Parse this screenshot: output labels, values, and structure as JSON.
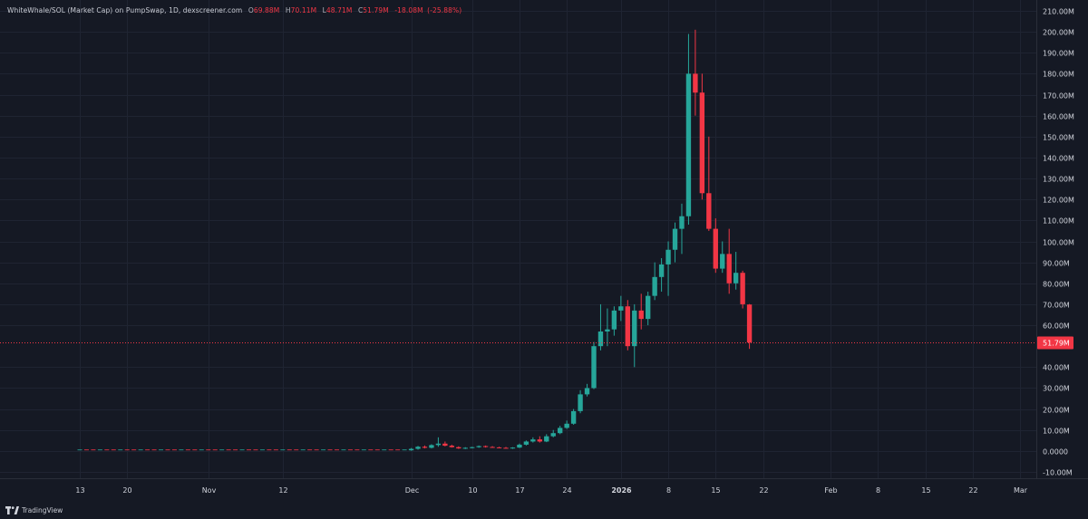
{
  "legend": {
    "title": "WhiteWhale/SOL (Market Cap) on PumpSwap, 1D, dexscreener.com",
    "open_label": "O",
    "open": "69.88M",
    "high_label": "H",
    "high": "70.11M",
    "low_label": "L",
    "low": "48.71M",
    "close_label": "C",
    "close": "51.79M",
    "change": "-18.08M",
    "change_pct": "(-25.88%)"
  },
  "branding": {
    "name": "TradingView"
  },
  "colors": {
    "background": "#151924",
    "up": "#26a69a",
    "down": "#f23645",
    "grid": "#1f2432",
    "axis_text": "#d1d4dc"
  },
  "chart_data": {
    "type": "candlestick",
    "interval": "1D",
    "y_unit": "M",
    "ylim": [
      -10,
      210
    ],
    "y_ticks": [
      {
        "value": 210,
        "label": "210.00M"
      },
      {
        "value": 200,
        "label": "200.00M"
      },
      {
        "value": 190,
        "label": "190.00M"
      },
      {
        "value": 180,
        "label": "180.00M"
      },
      {
        "value": 170,
        "label": "170.00M"
      },
      {
        "value": 160,
        "label": "160.00M"
      },
      {
        "value": 150,
        "label": "150.00M"
      },
      {
        "value": 140,
        "label": "140.00M"
      },
      {
        "value": 130,
        "label": "130.00M"
      },
      {
        "value": 120,
        "label": "120.00M"
      },
      {
        "value": 110,
        "label": "110.00M"
      },
      {
        "value": 100,
        "label": "100.00M"
      },
      {
        "value": 90,
        "label": "90.00M"
      },
      {
        "value": 80,
        "label": "80.00M"
      },
      {
        "value": 70,
        "label": "70.00M"
      },
      {
        "value": 60,
        "label": "60.00M"
      },
      {
        "value": 40,
        "label": "40.00M"
      },
      {
        "value": 30,
        "label": "30.00M"
      },
      {
        "value": 20,
        "label": "20.00M"
      },
      {
        "value": 10,
        "label": "10.00M"
      },
      {
        "value": 0,
        "label": "0.0000"
      },
      {
        "value": -10,
        "label": "-10.00M"
      }
    ],
    "x_ticks": [
      {
        "date": "2025-10-13",
        "label": "13",
        "bold": false
      },
      {
        "date": "2025-10-20",
        "label": "20",
        "bold": false
      },
      {
        "date": "2025-11-01",
        "label": "Nov",
        "bold": false
      },
      {
        "date": "2025-11-12",
        "label": "12",
        "bold": false
      },
      {
        "date": "2025-12-01",
        "label": "Dec",
        "bold": false
      },
      {
        "date": "2025-12-10",
        "label": "10",
        "bold": false
      },
      {
        "date": "2025-12-17",
        "label": "17",
        "bold": false
      },
      {
        "date": "2025-12-24",
        "label": "24",
        "bold": false
      },
      {
        "date": "2026-01-01",
        "label": "2026",
        "bold": true
      },
      {
        "date": "2026-01-08",
        "label": "8",
        "bold": false
      },
      {
        "date": "2026-01-15",
        "label": "15",
        "bold": false
      },
      {
        "date": "2026-01-22",
        "label": "22",
        "bold": false
      },
      {
        "date": "2026-02-01",
        "label": "Feb",
        "bold": false
      },
      {
        "date": "2026-02-08",
        "label": "8",
        "bold": false
      },
      {
        "date": "2026-02-15",
        "label": "15",
        "bold": false
      },
      {
        "date": "2026-02-22",
        "label": "22",
        "bold": false
      },
      {
        "date": "2026-03-01",
        "label": "Mar",
        "bold": false
      }
    ],
    "x_range": [
      "2025-10-13",
      "2026-03-01"
    ],
    "last_price": {
      "value": 51.79,
      "label": "51.79M"
    },
    "flat_period": {
      "from": "2025-10-13",
      "to": "2025-11-30",
      "value": 0.3
    },
    "candles": [
      {
        "date": "2025-12-01",
        "o": 0.3,
        "h": 1.4,
        "l": 0.1,
        "c": 1.0
      },
      {
        "date": "2025-12-02",
        "o": 1.0,
        "h": 2.4,
        "l": 0.6,
        "c": 2.0
      },
      {
        "date": "2025-12-03",
        "o": 2.0,
        "h": 2.6,
        "l": 1.2,
        "c": 1.5
      },
      {
        "date": "2025-12-04",
        "o": 1.5,
        "h": 3.2,
        "l": 1.2,
        "c": 2.8
      },
      {
        "date": "2025-12-05",
        "o": 2.8,
        "h": 6.5,
        "l": 2.0,
        "c": 3.5
      },
      {
        "date": "2025-12-06",
        "o": 3.5,
        "h": 4.5,
        "l": 2.2,
        "c": 2.5
      },
      {
        "date": "2025-12-07",
        "o": 2.5,
        "h": 3.0,
        "l": 1.6,
        "c": 1.8
      },
      {
        "date": "2025-12-08",
        "o": 1.8,
        "h": 2.2,
        "l": 1.0,
        "c": 1.2
      },
      {
        "date": "2025-12-09",
        "o": 1.2,
        "h": 1.8,
        "l": 0.9,
        "c": 1.5
      },
      {
        "date": "2025-12-10",
        "o": 1.5,
        "h": 2.0,
        "l": 1.2,
        "c": 1.8
      },
      {
        "date": "2025-12-11",
        "o": 1.8,
        "h": 2.6,
        "l": 1.5,
        "c": 2.3
      },
      {
        "date": "2025-12-12",
        "o": 2.3,
        "h": 2.6,
        "l": 1.6,
        "c": 1.9
      },
      {
        "date": "2025-12-13",
        "o": 1.9,
        "h": 2.3,
        "l": 1.6,
        "c": 1.7
      },
      {
        "date": "2025-12-14",
        "o": 1.7,
        "h": 2.0,
        "l": 1.4,
        "c": 1.5
      },
      {
        "date": "2025-12-15",
        "o": 1.5,
        "h": 1.9,
        "l": 1.2,
        "c": 1.4
      },
      {
        "date": "2025-12-16",
        "o": 1.4,
        "h": 1.8,
        "l": 1.0,
        "c": 1.6
      },
      {
        "date": "2025-12-17",
        "o": 1.6,
        "h": 3.5,
        "l": 1.4,
        "c": 3.0
      },
      {
        "date": "2025-12-18",
        "o": 3.0,
        "h": 5.0,
        "l": 2.6,
        "c": 4.5
      },
      {
        "date": "2025-12-19",
        "o": 4.5,
        "h": 6.5,
        "l": 4.0,
        "c": 5.5
      },
      {
        "date": "2025-12-20",
        "o": 5.5,
        "h": 7.0,
        "l": 4.0,
        "c": 4.5
      },
      {
        "date": "2025-12-21",
        "o": 4.5,
        "h": 8.0,
        "l": 4.2,
        "c": 7.0
      },
      {
        "date": "2025-12-22",
        "o": 7.0,
        "h": 10.0,
        "l": 6.5,
        "c": 8.5
      },
      {
        "date": "2025-12-23",
        "o": 8.5,
        "h": 12.0,
        "l": 8.0,
        "c": 11.0
      },
      {
        "date": "2025-12-24",
        "o": 11.0,
        "h": 14.5,
        "l": 10.5,
        "c": 13.0
      },
      {
        "date": "2025-12-25",
        "o": 13.0,
        "h": 20.0,
        "l": 12.5,
        "c": 19.0
      },
      {
        "date": "2025-12-26",
        "o": 19.0,
        "h": 29.0,
        "l": 18.0,
        "c": 27.0
      },
      {
        "date": "2025-12-27",
        "o": 27.0,
        "h": 32.0,
        "l": 26.0,
        "c": 30.0
      },
      {
        "date": "2025-12-28",
        "o": 30.0,
        "h": 52.0,
        "l": 29.5,
        "c": 50.0
      },
      {
        "date": "2025-12-29",
        "o": 50.0,
        "h": 70.0,
        "l": 48.0,
        "c": 57.0
      },
      {
        "date": "2025-12-30",
        "o": 57.0,
        "h": 68.0,
        "l": 50.0,
        "c": 58.0
      },
      {
        "date": "2025-12-31",
        "o": 58.0,
        "h": 69.0,
        "l": 55.0,
        "c": 67.0
      },
      {
        "date": "2026-01-01",
        "o": 67.0,
        "h": 74.0,
        "l": 62.0,
        "c": 69.0
      },
      {
        "date": "2026-01-02",
        "o": 69.0,
        "h": 72.0,
        "l": 48.0,
        "c": 50.0
      },
      {
        "date": "2026-01-03",
        "o": 50.0,
        "h": 70.0,
        "l": 40.0,
        "c": 67.0
      },
      {
        "date": "2026-01-04",
        "o": 67.0,
        "h": 75.0,
        "l": 58.0,
        "c": 63.0
      },
      {
        "date": "2026-01-05",
        "o": 63.0,
        "h": 76.0,
        "l": 60.0,
        "c": 74.0
      },
      {
        "date": "2026-01-06",
        "o": 74.0,
        "h": 90.0,
        "l": 72.0,
        "c": 83.0
      },
      {
        "date": "2026-01-07",
        "o": 83.0,
        "h": 92.0,
        "l": 76.0,
        "c": 89.0
      },
      {
        "date": "2026-01-08",
        "o": 89.0,
        "h": 100.0,
        "l": 74.0,
        "c": 96.0
      },
      {
        "date": "2026-01-09",
        "o": 96.0,
        "h": 109.0,
        "l": 90.0,
        "c": 106.0
      },
      {
        "date": "2026-01-10",
        "o": 106.0,
        "h": 118.0,
        "l": 94.0,
        "c": 112.0
      },
      {
        "date": "2026-01-11",
        "o": 112.0,
        "h": 199.0,
        "l": 108.0,
        "c": 180.0
      },
      {
        "date": "2026-01-12",
        "o": 180.0,
        "h": 201.0,
        "l": 160.0,
        "c": 171.0
      },
      {
        "date": "2026-01-13",
        "o": 171.0,
        "h": 180.0,
        "l": 120.0,
        "c": 123.0
      },
      {
        "date": "2026-01-14",
        "o": 123.0,
        "h": 150.0,
        "l": 105.0,
        "c": 106.0
      },
      {
        "date": "2026-01-15",
        "o": 106.0,
        "h": 111.0,
        "l": 85.0,
        "c": 87.0
      },
      {
        "date": "2026-01-16",
        "o": 87.0,
        "h": 100.0,
        "l": 85.0,
        "c": 94.0
      },
      {
        "date": "2026-01-17",
        "o": 94.0,
        "h": 106.0,
        "l": 75.0,
        "c": 80.0
      },
      {
        "date": "2026-01-18",
        "o": 80.0,
        "h": 95.0,
        "l": 77.0,
        "c": 85.0
      },
      {
        "date": "2026-01-19",
        "o": 85.0,
        "h": 86.0,
        "l": 68.0,
        "c": 70.0
      },
      {
        "date": "2026-01-20",
        "o": 69.88,
        "h": 70.11,
        "l": 48.71,
        "c": 51.79
      }
    ]
  }
}
